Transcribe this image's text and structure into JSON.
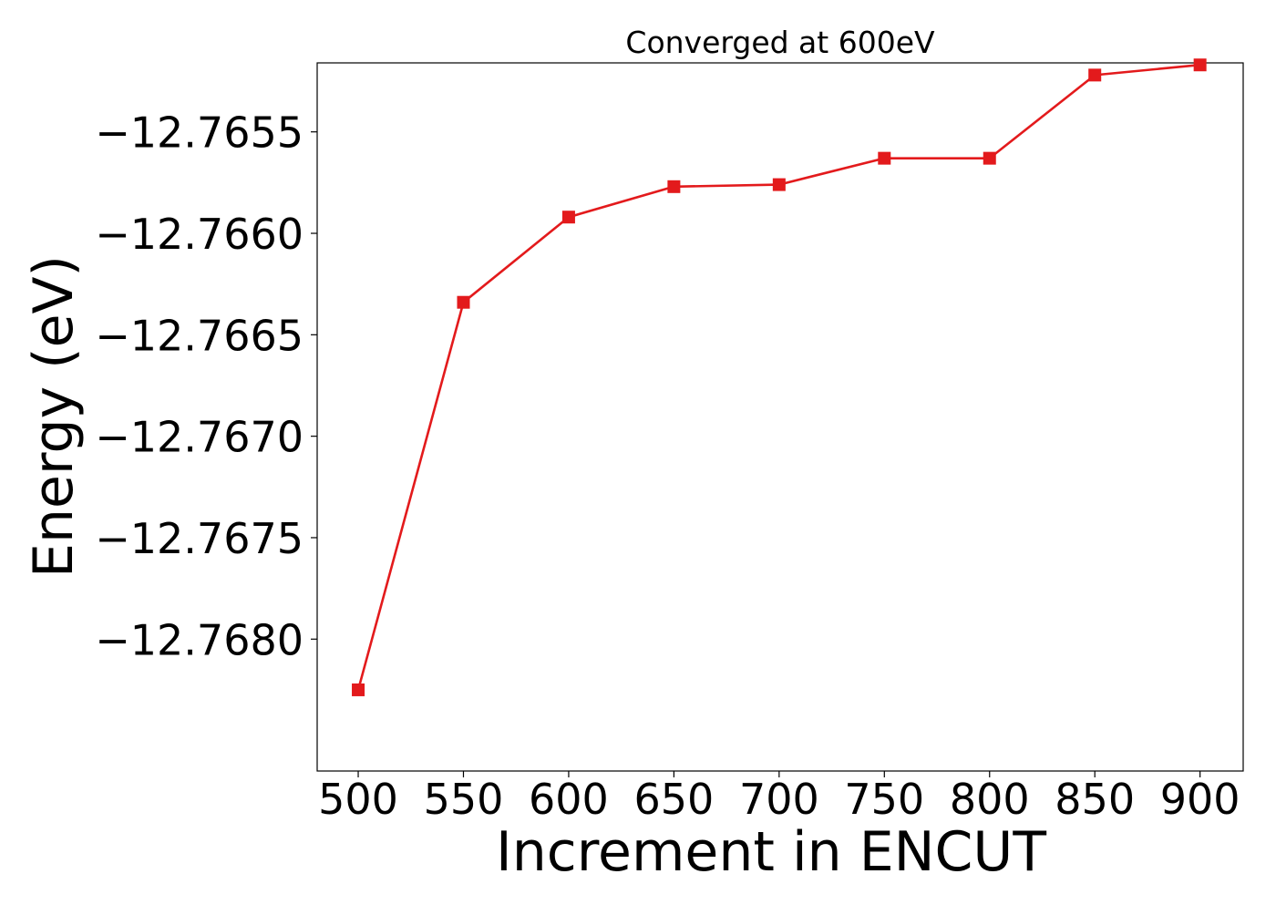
{
  "chart_data": {
    "type": "line",
    "title": "Converged at 600eV",
    "xlabel": "Increment in ENCUT",
    "ylabel": "Energy (eV)",
    "x": [
      500,
      550,
      600,
      650,
      700,
      750,
      800,
      850,
      900
    ],
    "series": [
      {
        "values": [
          -12.76825,
          -12.76634,
          -12.76592,
          -12.76577,
          -12.76576,
          -12.76563,
          -12.76563,
          -12.76522,
          -12.76517
        ],
        "color": "#e31a1c",
        "marker": "square"
      }
    ],
    "xticks": [
      500,
      550,
      600,
      650,
      700,
      750,
      800,
      850,
      900
    ],
    "xtick_labels": [
      "500",
      "550",
      "600",
      "650",
      "700",
      "750",
      "800",
      "850",
      "900"
    ],
    "yticks": [
      -12.768,
      -12.7675,
      -12.767,
      -12.7665,
      -12.766,
      -12.7655
    ],
    "ytick_labels": [
      "−12.7680",
      "−12.7675",
      "−12.7670",
      "−12.7665",
      "−12.7660",
      "−12.7655"
    ],
    "xlim": [
      480.5,
      920.5
    ],
    "ylim": [
      -12.76865,
      -12.76516
    ],
    "grid": false,
    "legend": false
  }
}
